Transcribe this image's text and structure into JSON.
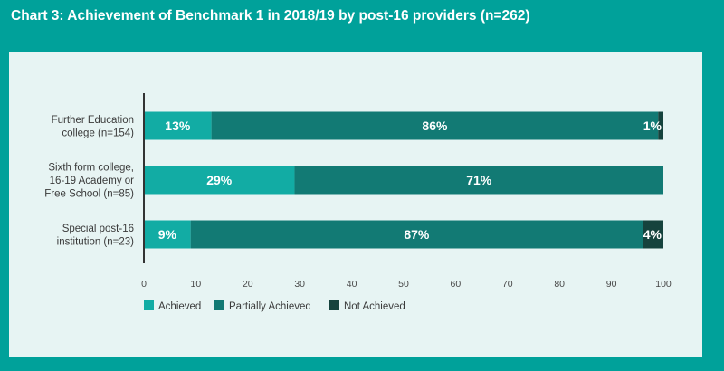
{
  "title": "Chart 3: Achievement of Benchmark 1 in 2018/19 by post-16 providers (n=262)",
  "colors": {
    "background": "#00a19a",
    "panel": "#e7f4f3",
    "achieved": "#12aca4",
    "partially_achieved": "#127a74",
    "not_achieved": "#16433d",
    "axis": "#333333",
    "text": "#3a3a3a"
  },
  "chart_data": {
    "type": "bar",
    "orientation": "horizontal",
    "stacked": true,
    "title": "Chart 3: Achievement of Benchmark 1 in 2018/19 by post-16 providers (n=262)",
    "categories": [
      [
        "Further Education",
        "college (n=154)"
      ],
      [
        "Sixth form college,",
        "16-19 Academy or",
        "Free School (n=85)"
      ],
      [
        "Special post-16",
        "institution (n=23)"
      ]
    ],
    "series": [
      {
        "name": "Achieved",
        "values": [
          13,
          29,
          9
        ],
        "labels": [
          "13%",
          "29%",
          "9%"
        ]
      },
      {
        "name": "Partially Achieved",
        "values": [
          86,
          71,
          87
        ],
        "labels": [
          "86%",
          "71%",
          "87%"
        ]
      },
      {
        "name": "Not Achieved",
        "values": [
          1,
          0,
          4
        ],
        "labels": [
          "1%",
          "",
          "4%"
        ]
      }
    ],
    "xlim": [
      0,
      100
    ],
    "xticks": [
      "0",
      "10",
      "20",
      "30",
      "40",
      "50",
      "60",
      "70",
      "80",
      "90",
      "100"
    ],
    "grid": false,
    "legend_position": "bottom-left"
  }
}
